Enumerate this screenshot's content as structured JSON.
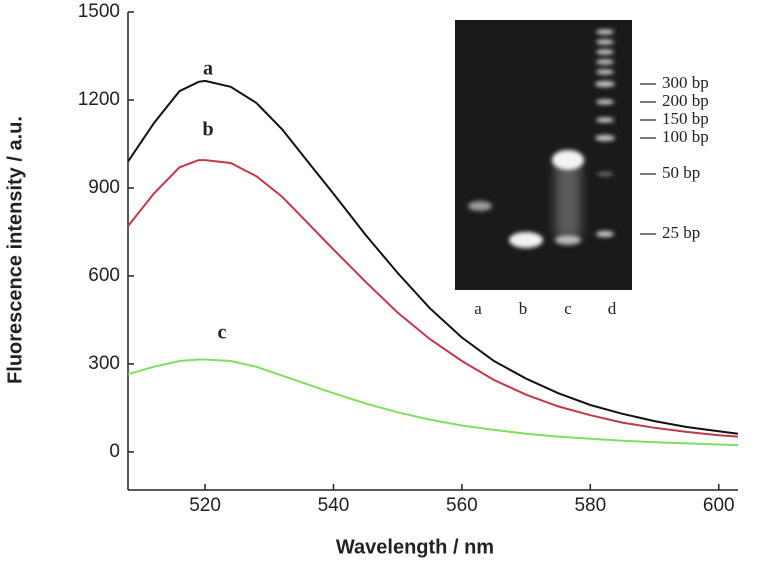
{
  "chart_data": {
    "type": "line",
    "xlabel": "Wavelength / nm",
    "ylabel": "Fluorescence intensity / a.u.",
    "x": [
      508,
      512,
      516,
      519,
      520,
      524,
      528,
      532,
      536,
      540,
      545,
      550,
      555,
      560,
      565,
      570,
      575,
      580,
      585,
      590,
      595,
      600,
      603
    ],
    "series": [
      {
        "color": "#111111",
        "values": [
          990,
          1120,
          1230,
          1262,
          1265,
          1245,
          1190,
          1100,
          990,
          880,
          740,
          610,
          490,
          390,
          310,
          250,
          200,
          160,
          130,
          105,
          85,
          70,
          62
        ]
      },
      {
        "color": "#c0394a",
        "values": [
          770,
          880,
          970,
          995,
          995,
          985,
          940,
          870,
          780,
          690,
          580,
          475,
          385,
          310,
          245,
          195,
          155,
          125,
          100,
          82,
          68,
          57,
          52
        ]
      },
      {
        "color": "#7ee060",
        "values": [
          265,
          290,
          310,
          315,
          315,
          310,
          290,
          260,
          230,
          200,
          165,
          135,
          110,
          90,
          75,
          62,
          52,
          45,
          38,
          33,
          29,
          25,
          23
        ]
      }
    ],
    "annotations": [
      "a",
      "b",
      "c"
    ],
    "xlim": [
      508,
      603
    ],
    "xticks": [
      520,
      540,
      560,
      580,
      600
    ],
    "ylim": [
      -130,
      1500
    ],
    "yticks": [
      0,
      300,
      600,
      900,
      1200,
      1500
    ],
    "inset": {
      "lanes": [
        "a",
        "b",
        "c",
        "d"
      ],
      "markers": [
        "300 bp",
        "200 bp",
        "150 bp",
        "100 bp",
        "50 bp",
        "25 bp"
      ]
    }
  }
}
